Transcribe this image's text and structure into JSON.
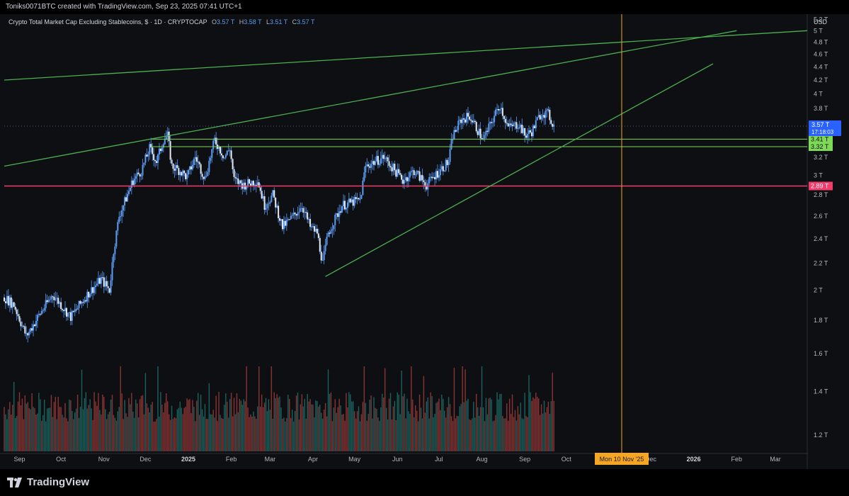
{
  "header": {
    "credit": "Toniks0071BTC created with TradingView.com, Sep 23, 2025 07:41 UTC+1"
  },
  "legend": {
    "symbol": "Crypto Total Market Cap Excluding Stablecoins, $ · 1D · CRYPTOCAP",
    "open_label": "O",
    "open": "3.57 T",
    "high_label": "H",
    "high": "3.58 T",
    "low_label": "L",
    "low": "3.51 T",
    "close_label": "C",
    "close": "3.57 T"
  },
  "branding": {
    "name": "TradingView"
  },
  "colors": {
    "background": "#0e0f12",
    "candle": "#5b9cf6",
    "trendline": "#4caf50",
    "support": "#7ed957",
    "resistance": "#f23c6b",
    "crosshair": "#f5a623",
    "volume_up": "#26a69a",
    "volume_down": "#ef5350"
  },
  "chart_data": {
    "type": "candlestick",
    "currency": "USD",
    "timeframe": "1D",
    "y_axis": {
      "scale": "log",
      "ylim": [
        1.13,
        5.3
      ],
      "ticks": [
        {
          "value": 1.2,
          "label": "1.2 T"
        },
        {
          "value": 1.4,
          "label": "1.4 T"
        },
        {
          "value": 1.6,
          "label": "1.6 T"
        },
        {
          "value": 1.8,
          "label": "1.8 T"
        },
        {
          "value": 2.0,
          "label": "2 T"
        },
        {
          "value": 2.2,
          "label": "2.2 T"
        },
        {
          "value": 2.4,
          "label": "2.4 T"
        },
        {
          "value": 2.6,
          "label": "2.6 T"
        },
        {
          "value": 2.8,
          "label": "2.8 T"
        },
        {
          "value": 3.0,
          "label": "3 T"
        },
        {
          "value": 3.2,
          "label": "3.2 T"
        },
        {
          "value": 3.8,
          "label": "3.8 T"
        },
        {
          "value": 4.0,
          "label": "4 T"
        },
        {
          "value": 4.2,
          "label": "4.2 T"
        },
        {
          "value": 4.4,
          "label": "4.4 T"
        },
        {
          "value": 4.6,
          "label": "4.6 T"
        },
        {
          "value": 4.8,
          "label": "4.8 T"
        },
        {
          "value": 5.0,
          "label": "5 T"
        },
        {
          "value": 5.2,
          "label": "5.2 T"
        }
      ]
    },
    "x_axis": {
      "xlim": [
        "2024-08-21",
        "2026-03-24"
      ],
      "ticks": [
        {
          "date": "2024-09-01",
          "label": "Sep"
        },
        {
          "date": "2024-10-01",
          "label": "Oct"
        },
        {
          "date": "2024-11-01",
          "label": "Nov"
        },
        {
          "date": "2024-12-01",
          "label": "Dec"
        },
        {
          "date": "2025-01-01",
          "label": "2025"
        },
        {
          "date": "2025-02-01",
          "label": "Feb"
        },
        {
          "date": "2025-03-01",
          "label": "Mar"
        },
        {
          "date": "2025-04-01",
          "label": "Apr"
        },
        {
          "date": "2025-05-01",
          "label": "May"
        },
        {
          "date": "2025-06-01",
          "label": "Jun"
        },
        {
          "date": "2025-07-01",
          "label": "Jul"
        },
        {
          "date": "2025-08-01",
          "label": "Aug"
        },
        {
          "date": "2025-09-01",
          "label": "Sep"
        },
        {
          "date": "2025-10-01",
          "label": "Oct"
        },
        {
          "date": "2025-12-01",
          "label": "Dec"
        },
        {
          "date": "2026-01-01",
          "label": "2026"
        },
        {
          "date": "2026-02-01",
          "label": "Feb"
        },
        {
          "date": "2026-03-01",
          "label": "Mar"
        }
      ]
    },
    "price_path": [
      [
        "2024-08-21",
        1.95
      ],
      [
        "2024-08-28",
        1.9
      ],
      [
        "2024-09-06",
        1.7
      ],
      [
        "2024-09-15",
        1.83
      ],
      [
        "2024-09-25",
        1.97
      ],
      [
        "2024-10-08",
        1.82
      ],
      [
        "2024-10-20",
        1.97
      ],
      [
        "2024-10-30",
        2.08
      ],
      [
        "2024-11-05",
        2.0
      ],
      [
        "2024-11-08",
        2.3
      ],
      [
        "2024-11-12",
        2.6
      ],
      [
        "2024-11-22",
        2.95
      ],
      [
        "2024-11-28",
        3.05
      ],
      [
        "2024-12-04",
        3.3
      ],
      [
        "2024-12-09",
        3.15
      ],
      [
        "2024-12-14",
        3.4
      ],
      [
        "2024-12-17",
        3.45
      ],
      [
        "2024-12-20",
        3.1
      ],
      [
        "2024-12-26",
        3.05
      ],
      [
        "2024-12-31",
        2.98
      ],
      [
        "2025-01-06",
        3.2
      ],
      [
        "2025-01-13",
        2.97
      ],
      [
        "2025-01-20",
        3.4
      ],
      [
        "2025-01-27",
        3.2
      ],
      [
        "2025-01-31",
        3.3
      ],
      [
        "2025-02-03",
        2.95
      ],
      [
        "2025-02-10",
        2.9
      ],
      [
        "2025-02-20",
        2.95
      ],
      [
        "2025-02-25",
        2.7
      ],
      [
        "2025-03-03",
        2.8
      ],
      [
        "2025-03-10",
        2.5
      ],
      [
        "2025-03-18",
        2.6
      ],
      [
        "2025-03-24",
        2.7
      ],
      [
        "2025-03-30",
        2.5
      ],
      [
        "2025-04-04",
        2.45
      ],
      [
        "2025-04-08",
        2.2
      ],
      [
        "2025-04-12",
        2.45
      ],
      [
        "2025-04-22",
        2.7
      ],
      [
        "2025-05-05",
        2.75
      ],
      [
        "2025-05-09",
        3.1
      ],
      [
        "2025-05-22",
        3.2
      ],
      [
        "2025-06-05",
        2.95
      ],
      [
        "2025-06-13",
        3.05
      ],
      [
        "2025-06-22",
        2.9
      ],
      [
        "2025-06-28",
        3.0
      ],
      [
        "2025-07-08",
        3.15
      ],
      [
        "2025-07-11",
        3.45
      ],
      [
        "2025-07-17",
        3.65
      ],
      [
        "2025-07-23",
        3.7
      ],
      [
        "2025-07-28",
        3.55
      ],
      [
        "2025-08-02",
        3.4
      ],
      [
        "2025-08-10",
        3.7
      ],
      [
        "2025-08-14",
        3.85
      ],
      [
        "2025-08-20",
        3.55
      ],
      [
        "2025-08-28",
        3.6
      ],
      [
        "2025-09-01",
        3.45
      ],
      [
        "2025-09-06",
        3.5
      ],
      [
        "2025-09-13",
        3.75
      ],
      [
        "2025-09-18",
        3.72
      ],
      [
        "2025-09-22",
        3.57
      ]
    ],
    "last": {
      "date": "2025-09-22",
      "open": 3.57,
      "high": 3.58,
      "low": 3.51,
      "close": 3.57
    },
    "volume": {
      "start": "2024-08-21",
      "end": "2025-09-22",
      "relative_max": 1.0
    },
    "trendlines": [
      {
        "from": [
          "2024-08-21",
          4.2
        ],
        "to": [
          "2026-03-24",
          5.0
        ]
      },
      {
        "from": [
          "2024-08-21",
          3.1
        ],
        "to": [
          "2026-02-01",
          5.0
        ]
      },
      {
        "from": [
          "2025-04-10",
          2.1
        ],
        "to": [
          "2026-01-15",
          4.45
        ]
      }
    ],
    "horizontal_levels": [
      {
        "value": 3.41,
        "label": "3.41 T",
        "from": "2024-12-05",
        "kind": "support"
      },
      {
        "value": 3.32,
        "label": "3.32 T",
        "from": "2024-12-05",
        "kind": "support"
      },
      {
        "value": 2.89,
        "label": "2.89 T",
        "from": "2024-08-21",
        "kind": "resistance"
      }
    ],
    "price_tag": {
      "value": 3.57,
      "label": "3.57 T",
      "countdown": "17:18:03"
    },
    "crosshair": {
      "date": "2025-11-10",
      "label": "Mon 10 Nov '25"
    }
  }
}
